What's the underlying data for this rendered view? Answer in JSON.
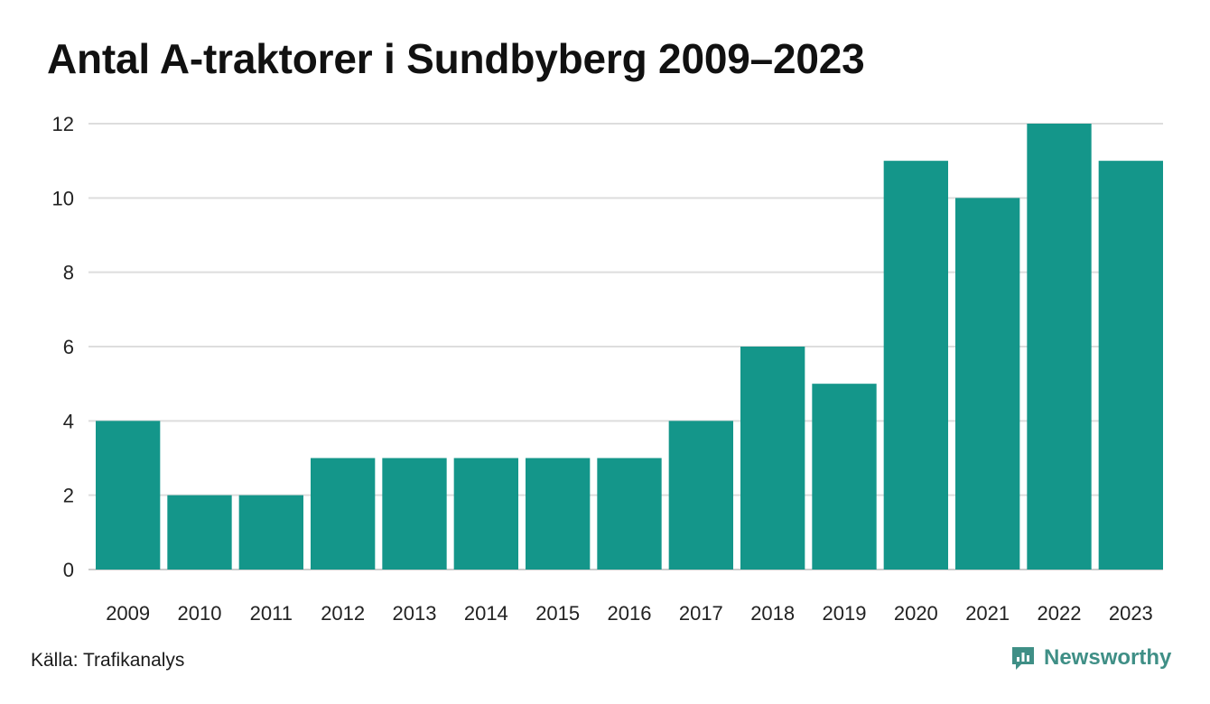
{
  "title": "Antal A-traktorer i Sundbyberg 2009–2023",
  "source": "Källa: Trafikanalys",
  "brand": {
    "name": "Newsworthy",
    "color": "#3f8f86",
    "icon": "newsworthy-logo-icon"
  },
  "colors": {
    "bar": "#14968a",
    "grid": "#dddddd",
    "axis": "#cccccc"
  },
  "chart_data": {
    "type": "bar",
    "title": "Antal A-traktorer i Sundbyberg 2009–2023",
    "xlabel": "",
    "ylabel": "",
    "categories": [
      "2009",
      "2010",
      "2011",
      "2012",
      "2013",
      "2014",
      "2015",
      "2016",
      "2017",
      "2018",
      "2019",
      "2020",
      "2021",
      "2022",
      "2023"
    ],
    "values": [
      4,
      2,
      2,
      3,
      3,
      3,
      3,
      3,
      4,
      6,
      5,
      11,
      10,
      12,
      11
    ],
    "ylim": [
      0,
      12
    ],
    "yticks": [
      0,
      2,
      4,
      6,
      8,
      10,
      12
    ],
    "grid": true,
    "legend": "none"
  }
}
